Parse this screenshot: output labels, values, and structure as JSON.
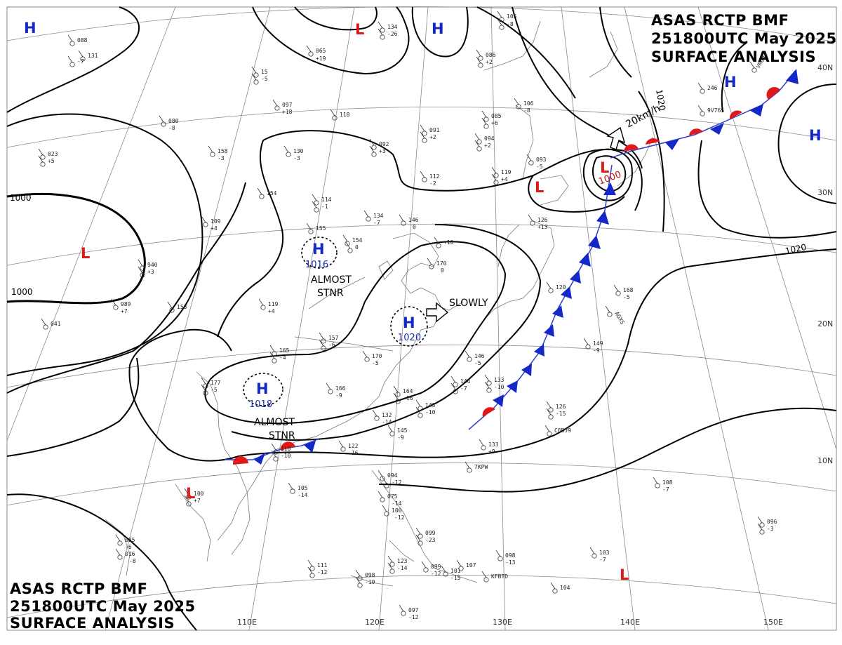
{
  "title_top": [
    "ASAS    RCTP    BMF",
    "251800UTC    May    2025",
    "SURFACE  ANALYSIS"
  ],
  "title_bottom": [
    "ASAS    RCTP    BMF",
    "251800UTC    May    2025",
    "SURFACE  ANALYSIS"
  ],
  "lon_labels": [
    "110E",
    "120E",
    "130E",
    "140E",
    "150E"
  ],
  "lat_labels": [
    "40N",
    "30N",
    "20N",
    "10N"
  ],
  "isobar_labels": [
    "1000",
    "1000",
    "1020",
    "1020"
  ],
  "centers": [
    {
      "id": "h-nw",
      "type": "H",
      "label": "H",
      "pressure": ""
    },
    {
      "id": "l-top",
      "type": "L",
      "label": "L",
      "pressure": ""
    },
    {
      "id": "h-top",
      "type": "H",
      "label": "H",
      "pressure": ""
    },
    {
      "id": "h-ne1",
      "type": "H",
      "label": "H",
      "pressure": ""
    },
    {
      "id": "h-ne2",
      "type": "H",
      "label": "H",
      "pressure": ""
    },
    {
      "id": "l-west",
      "type": "L",
      "label": "L",
      "pressure": ""
    },
    {
      "id": "l-korea",
      "type": "L",
      "label": "L",
      "pressure": ""
    },
    {
      "id": "l-japan",
      "type": "L",
      "label": "L",
      "pressure": "1000"
    },
    {
      "id": "h-china",
      "type": "H",
      "label": "H",
      "pressure": "1016"
    },
    {
      "id": "h-ecs",
      "type": "H",
      "label": "H",
      "pressure": "1020"
    },
    {
      "id": "h-south",
      "type": "H",
      "label": "H",
      "pressure": "1018"
    },
    {
      "id": "l-sw",
      "type": "L",
      "label": "L",
      "pressure": ""
    },
    {
      "id": "l-se",
      "type": "L",
      "label": "L",
      "pressure": ""
    }
  ],
  "annotations": {
    "almost_stnr_1": [
      "ALMOST",
      "STNR"
    ],
    "almost_stnr_2": [
      "ALMOST",
      "STNR"
    ],
    "slowly": "SLOWLY",
    "speed": "20km/h"
  },
  "stations": [
    "131",
    "065",
    "+19",
    "15",
    "-5",
    "097",
    "+18",
    "118",
    "134",
    "-26",
    "105",
    "-8",
    "086",
    "+2",
    "080",
    "-8",
    "158",
    "-3",
    "130",
    "-3",
    "023",
    "+5",
    "092",
    "+3",
    "091",
    "+2",
    "085",
    "+6",
    "094",
    "+2",
    "106",
    "-8",
    "246",
    "9V765",
    "VRG02",
    "112",
    "-2",
    "119",
    "+4",
    "093",
    "-5",
    "154",
    "114",
    "-1",
    "134",
    "-7",
    "146",
    "0",
    "109",
    "+4",
    "155",
    "154",
    "0",
    "126",
    "+13",
    "+10",
    "170",
    "0",
    "940",
    "+3",
    "153",
    "989",
    "+7",
    "119",
    "+4",
    "120",
    "168",
    "-5",
    "AGXS",
    "157",
    "-6",
    "165",
    "-4",
    "149",
    "-9",
    "170",
    "-5",
    "146",
    "-5",
    "133",
    "-10",
    "166",
    "-9",
    "164",
    "-16",
    "143",
    "-10",
    "144",
    "-7",
    "177",
    "-5",
    "041",
    "126",
    "-15",
    "C6BJ9",
    "122",
    "-16",
    "132",
    "-14",
    "145",
    "-9",
    "133",
    "+9",
    "7KPW",
    "110",
    "-10",
    "100",
    "+7",
    "105",
    "-14",
    "094",
    "-12",
    "075",
    "-14",
    "100",
    "-12",
    "108",
    "-7",
    "096",
    "-3",
    "085",
    "-6",
    "099",
    "-23",
    "111",
    "-12",
    "098",
    "-10",
    "123",
    "-14",
    "099",
    "-12",
    "101",
    "-15",
    "107",
    "098",
    "-13",
    "KFBTD",
    "103",
    "-7",
    "104",
    "097",
    "-12",
    "016",
    "-8",
    "088",
    "-7"
  ]
}
